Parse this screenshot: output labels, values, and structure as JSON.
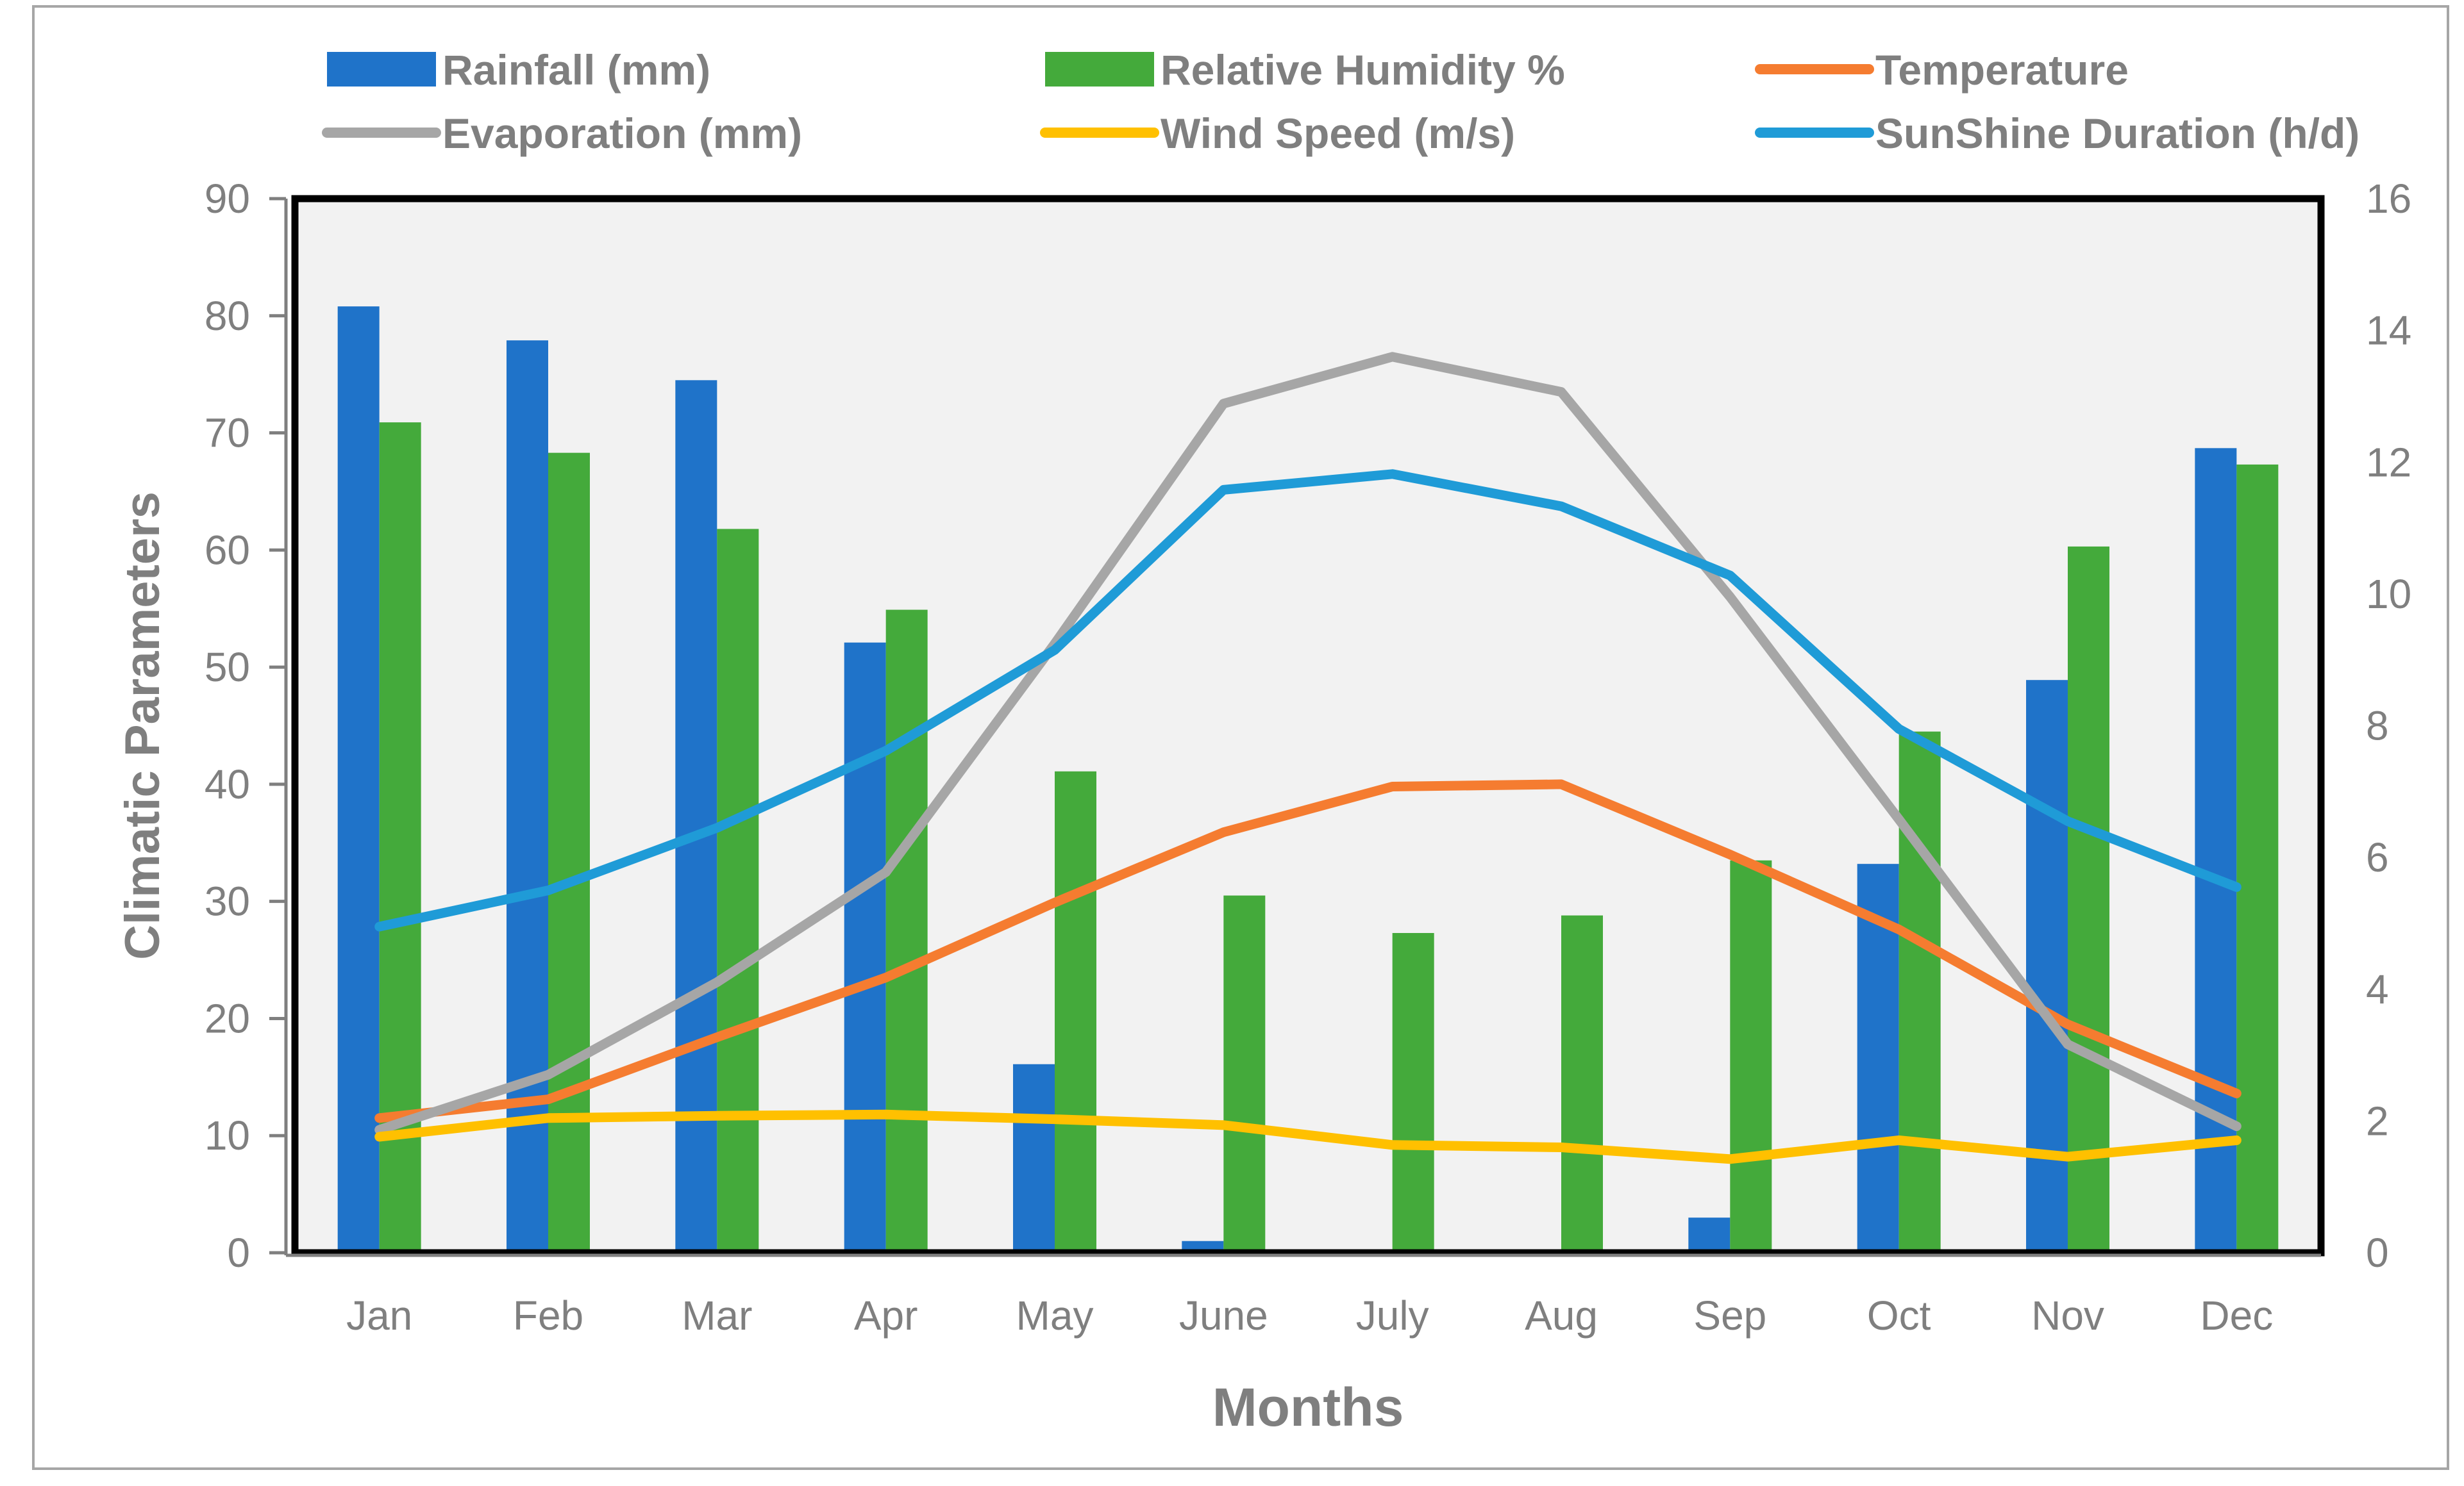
{
  "chart_data": {
    "type": "bar",
    "xlabel": "Months",
    "ylabel": "Climatic Parameters",
    "categories": [
      "Jan",
      "Feb",
      "Mar",
      "Apr",
      "May",
      "June",
      "July",
      "Aug",
      "Sep",
      "Oct",
      "Nov",
      "Dec"
    ],
    "ylim": [
      0,
      90
    ],
    "y2lim": [
      0,
      16
    ],
    "yticks": [
      "0",
      "10",
      "20",
      "30",
      "40",
      "50",
      "60",
      "70",
      "80",
      "90"
    ],
    "y2ticks": [
      "0",
      "2",
      "4",
      "6",
      "8",
      "10",
      "12",
      "14",
      "16"
    ],
    "grid": false,
    "legend_position": "top",
    "series": [
      {
        "name": "Rainfall (mm)",
        "kind": "bar",
        "axis": "left",
        "color": "#1f73c9",
        "values": [
          80.8,
          77.9,
          74.5,
          52.1,
          16.1,
          1.0,
          0.0,
          0.0,
          3.0,
          33.2,
          48.9,
          68.7
        ]
      },
      {
        "name": "Relative Humidity %",
        "kind": "bar",
        "axis": "left",
        "color": "#44aa3b",
        "values": [
          70.9,
          68.3,
          61.8,
          54.9,
          41.1,
          30.5,
          27.3,
          28.8,
          33.5,
          44.5,
          60.3,
          67.3
        ]
      },
      {
        "name": "Temperature",
        "kind": "line",
        "axis": "left",
        "color": "#f57c30",
        "values": [
          11.5,
          13.1,
          18.4,
          23.5,
          29.9,
          35.9,
          39.8,
          40.0,
          34.0,
          27.6,
          19.5,
          13.6
        ]
      },
      {
        "name": "Evaporation (mm)",
        "kind": "line",
        "axis": "left",
        "color": "#a6a6a6",
        "values": [
          10.5,
          15.2,
          23.1,
          32.5,
          52.0,
          72.5,
          76.5,
          73.5,
          56.0,
          37.0,
          17.8,
          10.8
        ]
      },
      {
        "name": "Wind Speed (m/s)",
        "kind": "line",
        "axis": "left",
        "color": "#ffc000",
        "values": [
          9.9,
          11.5,
          11.7,
          11.8,
          11.4,
          10.9,
          9.2,
          9.0,
          8.0,
          9.6,
          8.2,
          9.6
        ]
      },
      {
        "name": "SunShine Duration (h/d)",
        "kind": "line",
        "axis": "right",
        "color": "#1f9bd7",
        "values": [
          4.95,
          5.5,
          6.45,
          7.62,
          9.15,
          11.58,
          11.82,
          11.33,
          10.28,
          7.95,
          6.55,
          5.55
        ]
      }
    ]
  }
}
